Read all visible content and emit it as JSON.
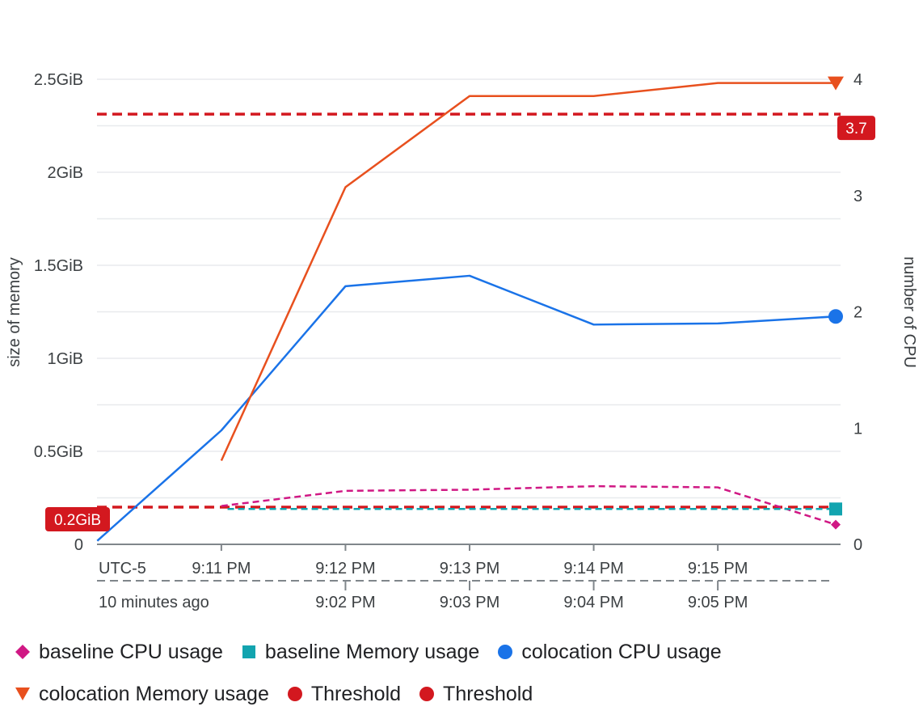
{
  "chart_data": {
    "type": "line",
    "y_left": {
      "label": "size of memory",
      "unit": "GiB",
      "ylim": [
        0,
        2.5
      ],
      "ticks": [
        "0",
        "0.5GiB",
        "1GiB",
        "1.5GiB",
        "2GiB",
        "2.5GiB"
      ]
    },
    "y_right": {
      "label": "number of CPU",
      "ylim": [
        0,
        4
      ],
      "ticks": [
        "0",
        "1",
        "2",
        "3",
        "4"
      ]
    },
    "x": {
      "timezone_label": "UTC-5",
      "ticks_top": [
        "9:11 PM",
        "9:12 PM",
        "9:13 PM",
        "9:14 PM",
        "9:15 PM"
      ],
      "ticks_bottom": [
        "10 minutes ago",
        "9:02 PM",
        "9:03 PM",
        "9:04 PM",
        "9:05 PM"
      ],
      "tick_minutes": [
        11,
        12,
        13,
        14,
        15
      ]
    },
    "series": [
      {
        "name": "baseline CPU usage",
        "axis": "right",
        "color": "#d01884",
        "style": "dashed",
        "marker": "diamond",
        "x": [
          11,
          12,
          13,
          14,
          15,
          15.95
        ],
        "y": [
          0.33,
          0.46,
          0.47,
          0.5,
          0.49,
          0.17
        ]
      },
      {
        "name": "baseline Memory usage",
        "axis": "left",
        "color": "#12a4af",
        "style": "dashed",
        "marker": "square",
        "x": [
          11.05,
          15.95
        ],
        "y": [
          0.19,
          0.19
        ]
      },
      {
        "name": "colocation CPU usage",
        "axis": "right",
        "color": "#1a73e8",
        "style": "solid",
        "marker": "circle",
        "x": [
          10,
          11,
          12,
          13,
          14,
          15,
          15.95
        ],
        "y": [
          0.03,
          0.98,
          2.22,
          2.31,
          1.89,
          1.9,
          1.96
        ]
      },
      {
        "name": "colocation Memory usage",
        "axis": "left",
        "color": "#e8501e",
        "style": "solid",
        "marker": "triangle-down",
        "x": [
          11,
          12,
          13,
          14,
          15,
          15.95
        ],
        "y": [
          0.45,
          1.92,
          2.41,
          2.41,
          2.48,
          2.48
        ]
      }
    ],
    "thresholds": [
      {
        "name": "Threshold",
        "axis": "right",
        "value": 3.7,
        "label": "3.7",
        "color": "#d3181f"
      },
      {
        "name": "Threshold",
        "axis": "left",
        "value": 0.2,
        "label": "0.2GiB",
        "color": "#d3181f"
      }
    ],
    "legend_position": "bottom",
    "grid": true
  }
}
